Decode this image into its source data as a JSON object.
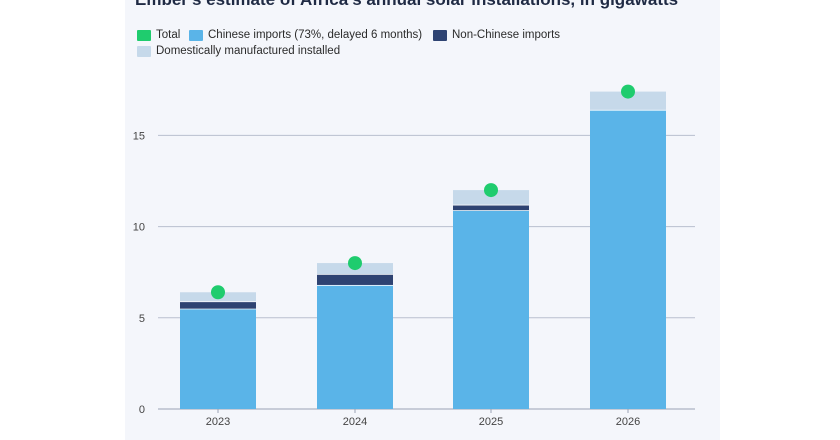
{
  "chart_data": {
    "type": "bar",
    "title": "Ember's estimate of Africa's annual solar installations, in gigawatts",
    "categories": [
      "2023",
      "2024",
      "2025",
      "2026"
    ],
    "series": [
      {
        "name": "Chinese imports (73%, delayed 6 months)",
        "color": "#5ab4e8",
        "values": [
          5.5,
          6.8,
          10.9,
          16.4
        ]
      },
      {
        "name": "Non-Chinese imports",
        "color": "#2e4372",
        "values": [
          0.4,
          0.6,
          0.3,
          0.0
        ]
      },
      {
        "name": "Domestically manufactured installed",
        "color": "#c6d9ea",
        "values": [
          0.5,
          0.6,
          0.8,
          1.0
        ]
      }
    ],
    "total": {
      "name": "Total",
      "color": "#1fcc6e",
      "values": [
        6.4,
        8.0,
        12.0,
        17.4
      ]
    },
    "yticks": [
      0,
      5,
      10,
      15
    ],
    "ylim": [
      0,
      18.2
    ],
    "xlabel": "",
    "ylabel": "",
    "stacked": true,
    "grid": true,
    "legend": "top-left"
  }
}
